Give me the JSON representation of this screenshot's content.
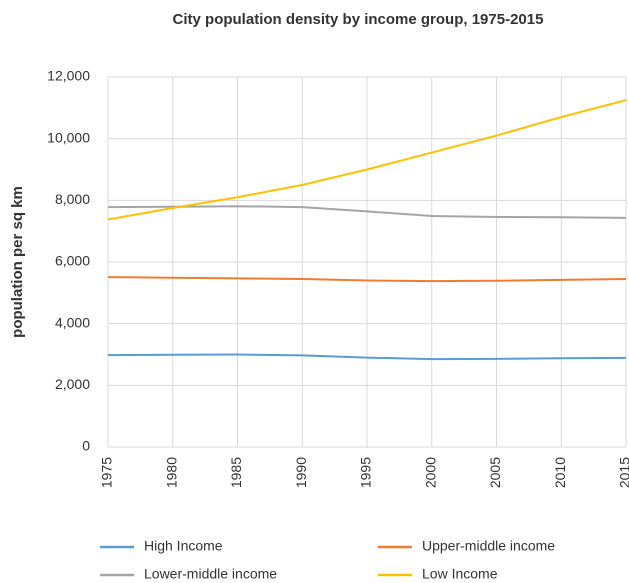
{
  "chart_data": {
    "type": "line",
    "title": "City population density by income group, 1975-2015",
    "y_label": "population per sq km",
    "x": [
      1975,
      1980,
      1985,
      1990,
      1995,
      2000,
      2005,
      2010,
      2015
    ],
    "xlim": [
      1975,
      2015
    ],
    "xticks": [
      1975,
      1980,
      1985,
      1990,
      1995,
      2000,
      2005,
      2010,
      2015
    ],
    "ylim": [
      0,
      12000
    ],
    "yticks": [
      0,
      {
        "value": 2000,
        "label": "2,000"
      },
      {
        "value": 4000,
        "label": "4,000"
      },
      {
        "value": 6000,
        "label": "6,000"
      },
      {
        "value": 8000,
        "label": "8,000"
      },
      {
        "value": 10000,
        "label": "10,000"
      },
      {
        "value": 12000,
        "label": "12,000"
      }
    ],
    "grid": true,
    "legend": "bottom",
    "series": [
      {
        "name": "High Income",
        "color": "#5b9bd5",
        "values": [
          2980,
          2990,
          3000,
          2970,
          2900,
          2850,
          2860,
          2880,
          2890
        ]
      },
      {
        "name": "Upper-middle income",
        "color": "#ed7d31",
        "values": [
          5510,
          5490,
          5470,
          5450,
          5400,
          5380,
          5390,
          5420,
          5450
        ]
      },
      {
        "name": "Lower-middle income",
        "color": "#a5a5a5",
        "values": [
          7780,
          7790,
          7810,
          7780,
          7640,
          7490,
          7460,
          7450,
          7430
        ]
      },
      {
        "name": "Low Income",
        "color": "#ffc000",
        "values": [
          7380,
          7750,
          8100,
          8500,
          9000,
          9550,
          10100,
          10700,
          11250
        ]
      }
    ]
  }
}
